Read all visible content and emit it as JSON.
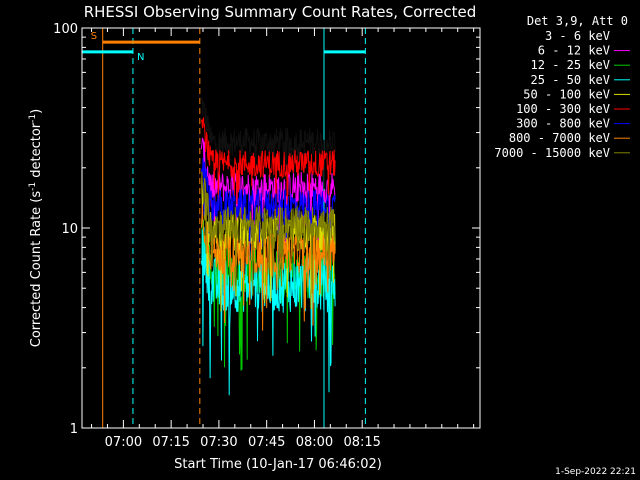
{
  "chart_data": {
    "type": "line",
    "title": "RHESSI Observing Summary Count Rates, Corrected",
    "xlabel": "Start Time (10-Jan-17 06:46:02)",
    "ylabel": "Corrected Count Rate (s⁻¹ detector⁻¹)",
    "ylabel_parts": {
      "main": "Corrected Count Rate (s",
      "sup1": "-1",
      "mid": " detector",
      "sup2": "-1",
      "end": ")"
    },
    "yscale": "log",
    "ylim": [
      1,
      100
    ],
    "xlim_minutes": [
      -13.0,
      112.0
    ],
    "x_ticks": [
      {
        "label": "07:00",
        "minutes": 0
      },
      {
        "label": "07:15",
        "minutes": 15
      },
      {
        "label": "07:30",
        "minutes": 30
      },
      {
        "label": "07:45",
        "minutes": 45
      },
      {
        "label": "08:00",
        "minutes": 60
      },
      {
        "label": "08:15",
        "minutes": 75
      }
    ],
    "y_ticks": [
      {
        "label": "1",
        "value": 1
      },
      {
        "label": "10",
        "value": 10
      },
      {
        "label": "100",
        "value": 100
      }
    ],
    "legend_header": "Det 3,9, Att 0",
    "legend_placement": "right",
    "series": [
      {
        "name": "3 - 6 keV",
        "color": "#000000",
        "level": 27,
        "noise": 0.07
      },
      {
        "name": "6 - 12 keV",
        "color": "#ff00ff",
        "level": 16,
        "noise": 0.08
      },
      {
        "name": "12 - 25 keV",
        "color": "#00c800",
        "level": 6.0,
        "noise": 0.13
      },
      {
        "name": "25 - 50 keV",
        "color": "#00ffff",
        "level": 5.2,
        "noise": 0.14
      },
      {
        "name": "50 - 100 keV",
        "color": "#dcdc00",
        "level": 9.5,
        "noise": 0.1
      },
      {
        "name": "100 - 300 keV",
        "color": "#ff0000",
        "level": 21,
        "noise": 0.07
      },
      {
        "name": "300 - 800 keV",
        "color": "#0000ff",
        "level": 13,
        "noise": 0.08
      },
      {
        "name": "800 - 7000 keV",
        "color": "#ff8000",
        "level": 7.5,
        "noise": 0.1
      },
      {
        "name": "7000 - 15000 keV",
        "color": "#808000",
        "level": 10.5,
        "noise": 0.09
      }
    ],
    "data_window_minutes": [
      24.5,
      66.5
    ],
    "annotations": [
      {
        "label": "S",
        "color": "#ff8000",
        "start_minutes": -6.5,
        "end_minutes": 24,
        "value": 85
      },
      {
        "label": "N",
        "color": "#00ffff",
        "start_minutes": -13,
        "end_minutes": 3,
        "value": 76
      },
      {
        "label": "",
        "color": "#00ffff",
        "start_minutes": 63,
        "end_minutes": 76,
        "value": 76
      }
    ],
    "event_lines": [
      {
        "color": "#ff8000",
        "style": "solid",
        "minutes": -6.5
      },
      {
        "color": "#00ffff",
        "style": "dashed",
        "minutes": 3
      },
      {
        "color": "#ff8000",
        "style": "dashed",
        "minutes": 24
      },
      {
        "color": "#00ffff",
        "style": "solid",
        "minutes": 63
      },
      {
        "color": "#00ffff",
        "style": "dashed",
        "minutes": 76
      }
    ]
  },
  "footer_timestamp": "1-Sep-2022 22:21"
}
